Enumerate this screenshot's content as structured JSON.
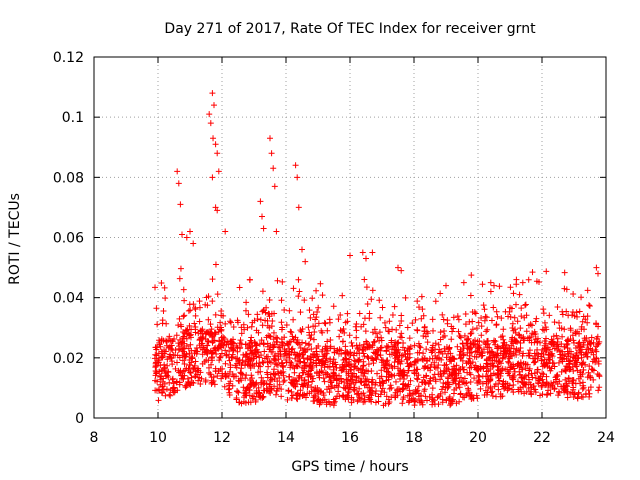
{
  "chart_data": {
    "type": "scatter",
    "title": "Day 271 of 2017, Rate Of TEC Index for receiver grnt",
    "xlabel": "GPS time / hours",
    "ylabel": "ROTI / TECUs",
    "xlim": [
      8,
      24
    ],
    "ylim": [
      0,
      0.12
    ],
    "xticks": [
      8,
      10,
      12,
      14,
      16,
      18,
      20,
      22,
      24
    ],
    "yticks": [
      0,
      0.02,
      0.04,
      0.06,
      0.08,
      0.1,
      0.12
    ],
    "xtick_labels": [
      "8",
      "10",
      "12",
      "14",
      "16",
      "18",
      "20",
      "22",
      "24"
    ],
    "ytick_labels": [
      "0",
      "0.02",
      "0.04",
      "0.06",
      "0.08",
      "0.1",
      "0.12"
    ],
    "grid": true,
    "marker": "+",
    "color": "#ff0000",
    "series": [
      {
        "name": "ROTI",
        "x_range": [
          9.9,
          23.8
        ],
        "points": [
          [
            10.6,
            0.082
          ],
          [
            10.65,
            0.078
          ],
          [
            10.7,
            0.071
          ],
          [
            10.75,
            0.061
          ],
          [
            10.9,
            0.06
          ],
          [
            11.0,
            0.062
          ],
          [
            11.1,
            0.058
          ],
          [
            11.6,
            0.101
          ],
          [
            11.65,
            0.098
          ],
          [
            11.7,
            0.108
          ],
          [
            11.75,
            0.104
          ],
          [
            11.72,
            0.093
          ],
          [
            11.8,
            0.091
          ],
          [
            11.85,
            0.088
          ],
          [
            11.9,
            0.082
          ],
          [
            11.7,
            0.08
          ],
          [
            11.8,
            0.07
          ],
          [
            11.85,
            0.069
          ],
          [
            12.1,
            0.062
          ],
          [
            13.2,
            0.072
          ],
          [
            13.25,
            0.067
          ],
          [
            13.3,
            0.063
          ],
          [
            13.5,
            0.093
          ],
          [
            13.55,
            0.088
          ],
          [
            13.6,
            0.083
          ],
          [
            13.65,
            0.077
          ],
          [
            13.7,
            0.062
          ],
          [
            14.3,
            0.084
          ],
          [
            14.35,
            0.08
          ],
          [
            14.4,
            0.07
          ],
          [
            14.5,
            0.056
          ],
          [
            14.6,
            0.052
          ],
          [
            16.0,
            0.054
          ],
          [
            16.4,
            0.055
          ],
          [
            16.5,
            0.053
          ],
          [
            16.7,
            0.055
          ],
          [
            17.5,
            0.05
          ],
          [
            17.6,
            0.049
          ],
          [
            19.0,
            0.044
          ],
          [
            20.4,
            0.045
          ],
          [
            20.5,
            0.044
          ],
          [
            21.2,
            0.046
          ],
          [
            21.3,
            0.041
          ],
          [
            21.4,
            0.045
          ],
          [
            22.7,
            0.043
          ],
          [
            23.7,
            0.05
          ],
          [
            23.75,
            0.048
          ]
        ],
        "baseline": [
          [
            10.0,
            0.015
          ],
          [
            10.5,
            0.018
          ],
          [
            11.0,
            0.02
          ],
          [
            11.5,
            0.022
          ],
          [
            12.0,
            0.02
          ],
          [
            12.5,
            0.015
          ],
          [
            13.0,
            0.014
          ],
          [
            13.5,
            0.018
          ],
          [
            14.0,
            0.016
          ],
          [
            14.5,
            0.016
          ],
          [
            15.0,
            0.014
          ],
          [
            15.5,
            0.014
          ],
          [
            16.0,
            0.014
          ],
          [
            16.5,
            0.015
          ],
          [
            17.0,
            0.014
          ],
          [
            17.5,
            0.015
          ],
          [
            18.0,
            0.014
          ],
          [
            18.5,
            0.014
          ],
          [
            19.0,
            0.014
          ],
          [
            19.5,
            0.015
          ],
          [
            20.0,
            0.016
          ],
          [
            20.5,
            0.017
          ],
          [
            21.0,
            0.017
          ],
          [
            21.5,
            0.018
          ],
          [
            22.0,
            0.017
          ],
          [
            22.5,
            0.017
          ],
          [
            23.0,
            0.016
          ],
          [
            23.5,
            0.017
          ],
          [
            23.8,
            0.017
          ]
        ]
      }
    ]
  }
}
